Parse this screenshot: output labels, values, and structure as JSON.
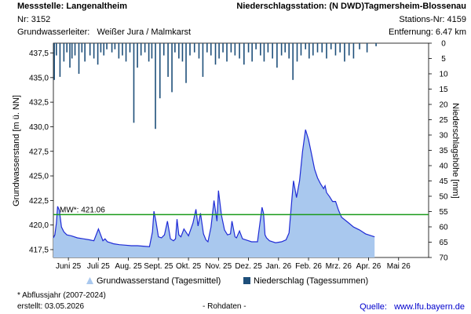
{
  "header": {
    "station_title": "Messstelle: Langenaltheim",
    "station_nr": "Nr: 3152",
    "aquifer_label": "Grundwasserleiter:",
    "aquifer_value": "Weißer Jura / Malmkarst",
    "precip_title": "Niederschlagsstation: (N DWD)Tagmersheim-Blossenau",
    "precip_nr": "Stations-Nr: 4159",
    "distance": "Entfernung: 6.47 km"
  },
  "footer": {
    "note": "* Abflussjahr (2007-2024)",
    "created": "erstellt:  03.05.2026",
    "raw": "- Rohdaten -",
    "source_label": "Quelle:",
    "source_url": "www.lfu.bayern.de"
  },
  "legend": {
    "gw": "Grundwasserstand (Tagesmittel)",
    "precip": "Niederschlag (Tagessummen)"
  },
  "colors": {
    "gw_fill": "#a9c8ee",
    "gw_line": "#1f2bd6",
    "precip": "#1e4f7a",
    "mw_line": "#1a9a1a"
  },
  "chart_data": {
    "type": "area",
    "ylabel": "Grundwasserstand [m ü. NN]",
    "y2label": "Niederschlagshöhe [mm]",
    "ylim": [
      416.7,
      438.5
    ],
    "y_ticks": [
      "417,5",
      "420,0",
      "422,5",
      "425,0",
      "427,5",
      "430,0",
      "432,5",
      "435,0",
      "437,5"
    ],
    "y2lim": [
      0,
      70
    ],
    "y2_ticks": [
      "0",
      "5",
      "10",
      "15",
      "20",
      "25",
      "30",
      "35",
      "40",
      "45",
      "50",
      "55",
      "60",
      "65",
      "70"
    ],
    "xlim": [
      0,
      12.5
    ],
    "x_ticks": [
      "Juni 25",
      "Juli 25",
      "Aug. 25",
      "Sept. 25",
      "Okt. 25",
      "Nov. 25",
      "Dez. 25",
      "Jan. 26",
      "Feb. 26",
      "Mrz. 26",
      "Apr. 26",
      "Mai 26"
    ],
    "mw": {
      "label": "MW*: 421.06",
      "value": 421.06
    },
    "groundwater": {
      "name": "Grundwasserstand (Tagesmittel)",
      "x": [
        0.0,
        0.05,
        0.1,
        0.14,
        0.2,
        0.27,
        0.35,
        0.45,
        0.6,
        0.8,
        1.0,
        1.2,
        1.35,
        1.5,
        1.6,
        1.65,
        1.72,
        1.8,
        1.9,
        2.0,
        2.2,
        2.4,
        2.6,
        2.8,
        3.0,
        3.2,
        3.3,
        3.35,
        3.42,
        3.5,
        3.6,
        3.7,
        3.8,
        3.9,
        4.0,
        4.07,
        4.12,
        4.18,
        4.25,
        4.35,
        4.5,
        4.65,
        4.75,
        4.82,
        4.9,
        5.0,
        5.08,
        5.15,
        5.25,
        5.35,
        5.45,
        5.5,
        5.6,
        5.7,
        5.8,
        5.9,
        5.95,
        6.05,
        6.1,
        6.2,
        6.3,
        6.5,
        6.6,
        6.8,
        6.95,
        7.0,
        7.05,
        7.1,
        7.2,
        7.4,
        7.6,
        7.75,
        7.85,
        7.95,
        8.0,
        8.1,
        8.2,
        8.3,
        8.4,
        8.5,
        8.6,
        8.7,
        8.8,
        8.9,
        9.0,
        9.05,
        9.1,
        9.2,
        9.3,
        9.4,
        9.5,
        9.6,
        9.8,
        10.0,
        10.2,
        10.4,
        10.6,
        10.7
      ],
      "y": [
        418.7,
        419.0,
        420.2,
        421.9,
        421.5,
        419.8,
        419.3,
        419.0,
        418.9,
        418.7,
        418.6,
        418.5,
        418.4,
        419.6,
        418.8,
        418.4,
        418.6,
        418.3,
        418.2,
        418.1,
        418.0,
        417.95,
        417.9,
        417.9,
        417.85,
        417.8,
        419.3,
        421.4,
        420.3,
        418.8,
        418.7,
        419.0,
        420.4,
        418.6,
        418.4,
        418.6,
        420.6,
        419.0,
        418.8,
        419.6,
        418.9,
        420.2,
        421.6,
        419.9,
        421.2,
        419.1,
        418.5,
        418.3,
        419.8,
        422.5,
        420.4,
        423.5,
        421.0,
        419.5,
        419.0,
        419.1,
        420.4,
        418.8,
        418.7,
        419.4,
        418.6,
        418.4,
        418.3,
        418.3,
        421.8,
        421.2,
        419.0,
        418.7,
        418.4,
        418.2,
        418.3,
        418.5,
        419.2,
        422.8,
        424.5,
        422.8,
        424.5,
        427.5,
        429.7,
        428.7,
        427.2,
        425.7,
        424.8,
        424.2,
        423.7,
        424.0,
        423.3,
        422.9,
        422.4,
        422.4,
        421.5,
        420.8,
        420.3,
        419.8,
        419.5,
        419.1,
        418.9,
        418.8
      ]
    },
    "precipitation": {
      "name": "Niederschlag (Tagessummen)",
      "x": [
        0.03,
        0.1,
        0.22,
        0.35,
        0.45,
        0.55,
        0.62,
        0.72,
        0.85,
        0.95,
        1.05,
        1.22,
        1.35,
        1.48,
        1.58,
        1.68,
        1.78,
        1.95,
        2.05,
        2.18,
        2.3,
        2.42,
        2.55,
        2.68,
        2.8,
        2.92,
        3.05,
        3.18,
        3.28,
        3.4,
        3.55,
        3.68,
        3.82,
        3.95,
        4.05,
        4.18,
        4.3,
        4.42,
        4.55,
        4.7,
        4.85,
        4.98,
        5.12,
        5.25,
        5.4,
        5.52,
        5.65,
        5.78,
        5.92,
        6.05,
        6.2,
        6.35,
        6.5,
        6.62,
        6.75,
        6.9,
        7.02,
        7.15,
        7.3,
        7.45,
        7.6,
        7.72,
        7.85,
        7.98,
        8.12,
        8.25,
        8.4,
        8.52,
        8.65,
        8.8,
        8.95,
        9.1,
        9.25,
        9.4,
        9.55,
        9.7,
        9.85,
        10.0,
        10.2,
        10.45,
        10.75
      ],
      "v": [
        12,
        4,
        11,
        6,
        3,
        8,
        5,
        4,
        10,
        3,
        6,
        4,
        5,
        7,
        3,
        4,
        2,
        3,
        2,
        5,
        4,
        6,
        3,
        26,
        8,
        4,
        3,
        6,
        5,
        28,
        18,
        4,
        11,
        16,
        3,
        5,
        6,
        13,
        4,
        3,
        5,
        11,
        3,
        4,
        7,
        5,
        3,
        6,
        3,
        4,
        5,
        7,
        3,
        6,
        2,
        4,
        6,
        3,
        5,
        8,
        4,
        3,
        5,
        12,
        6,
        4,
        2,
        5,
        4,
        3,
        3,
        5,
        2,
        4,
        3,
        6,
        4,
        5,
        2,
        3,
        1
      ]
    }
  }
}
